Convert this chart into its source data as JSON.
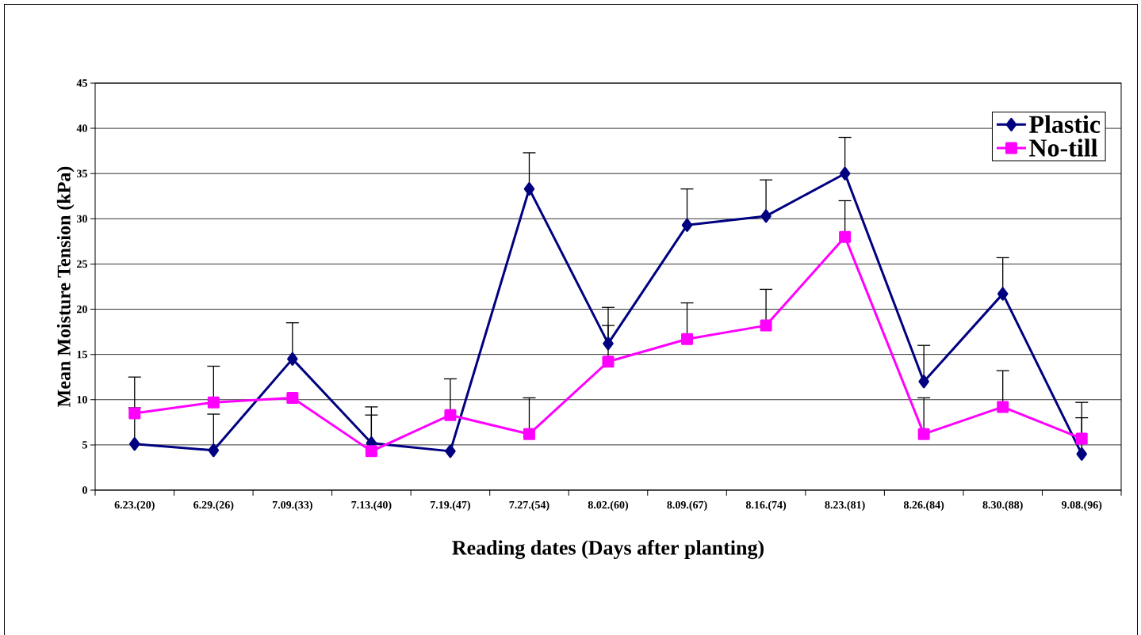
{
  "chart_data": {
    "type": "line",
    "xlabel": "Reading dates (Days after planting)",
    "ylabel": "Mean Moisture Tension (kPa)",
    "categories": [
      "6.23.(20)",
      "6.29.(26)",
      "7.09.(33)",
      "7.13.(40)",
      "7.19.(47)",
      "7.27.(54)",
      "8.02.(60)",
      "8.09.(67)",
      "8.16.(74)",
      "8.23.(81)",
      "8.26.(84)",
      "8.30.(88)",
      "9.08.(96)"
    ],
    "series": [
      {
        "name": "Plastic",
        "color": "#000080",
        "marker": "diamond",
        "values": [
          5.1,
          4.4,
          14.5,
          5.2,
          4.3,
          33.3,
          16.2,
          29.3,
          30.3,
          35.0,
          12.0,
          21.7,
          4.0
        ],
        "errors": [
          [
            5.1,
            9.1
          ],
          [
            4.4,
            8.4
          ],
          [
            14.5,
            18.5
          ],
          [
            5.2,
            9.2
          ],
          null,
          [
            33.3,
            37.3
          ],
          [
            16.2,
            20.2
          ],
          [
            29.3,
            33.3
          ],
          [
            30.3,
            34.3
          ],
          [
            35.0,
            39.0
          ],
          [
            12.0,
            16.0
          ],
          [
            21.7,
            25.7
          ],
          [
            4.0,
            8.0
          ]
        ]
      },
      {
        "name": "No-till",
        "color": "#ff00ff",
        "marker": "square",
        "values": [
          8.5,
          9.7,
          10.2,
          4.3,
          8.3,
          6.2,
          14.2,
          16.7,
          18.2,
          28.0,
          6.2,
          9.2,
          5.7
        ],
        "errors": [
          [
            8.5,
            12.5
          ],
          [
            9.7,
            13.7
          ],
          null,
          [
            4.3,
            8.3
          ],
          [
            8.3,
            12.3
          ],
          [
            6.2,
            10.2
          ],
          [
            14.2,
            18.2
          ],
          [
            16.7,
            20.7
          ],
          [
            18.2,
            22.2
          ],
          [
            28.0,
            32.0
          ],
          [
            6.2,
            10.2
          ],
          [
            9.2,
            13.2
          ],
          [
            5.7,
            9.7
          ]
        ]
      }
    ],
    "ylim": [
      0,
      45
    ],
    "yticks": [
      0,
      5,
      10,
      15,
      20,
      25,
      30,
      35,
      40,
      45
    ],
    "grid": "y",
    "legend": "top right",
    "line_style": "solid"
  }
}
